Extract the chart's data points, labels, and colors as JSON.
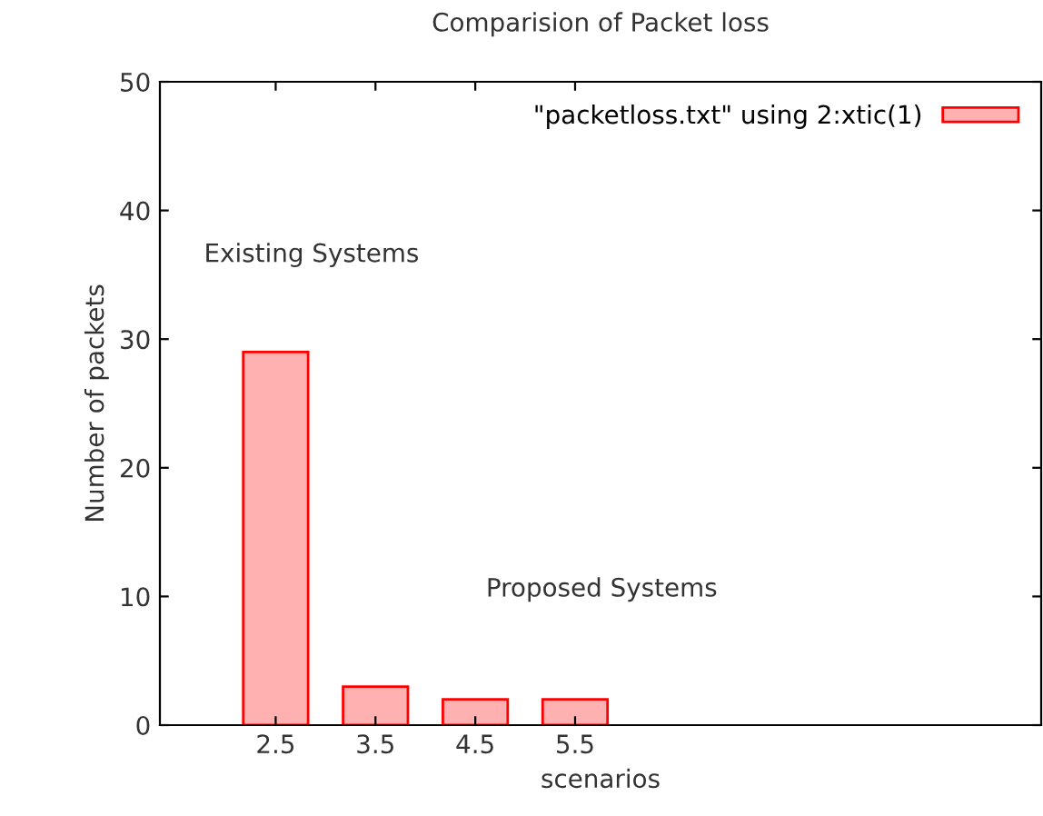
{
  "chart_data": {
    "type": "bar",
    "title": "Comparision of Packet loss",
    "xlabel": "scenarios",
    "ylabel": "Number of packets",
    "categories": [
      "2.5",
      "3.5",
      "4.5",
      "5.5"
    ],
    "series": [
      {
        "name": "\"packetloss.txt\" using 2:xtic(1)",
        "color": "#ffb0b0",
        "values": [
          29,
          3,
          2,
          2
        ]
      }
    ],
    "ylim": [
      0,
      50
    ],
    "yticks": [
      0,
      10,
      20,
      30,
      40,
      50
    ],
    "grid": false,
    "legend": "top right",
    "annotations": [
      "Existing Systems",
      "Proposed Systems"
    ]
  }
}
